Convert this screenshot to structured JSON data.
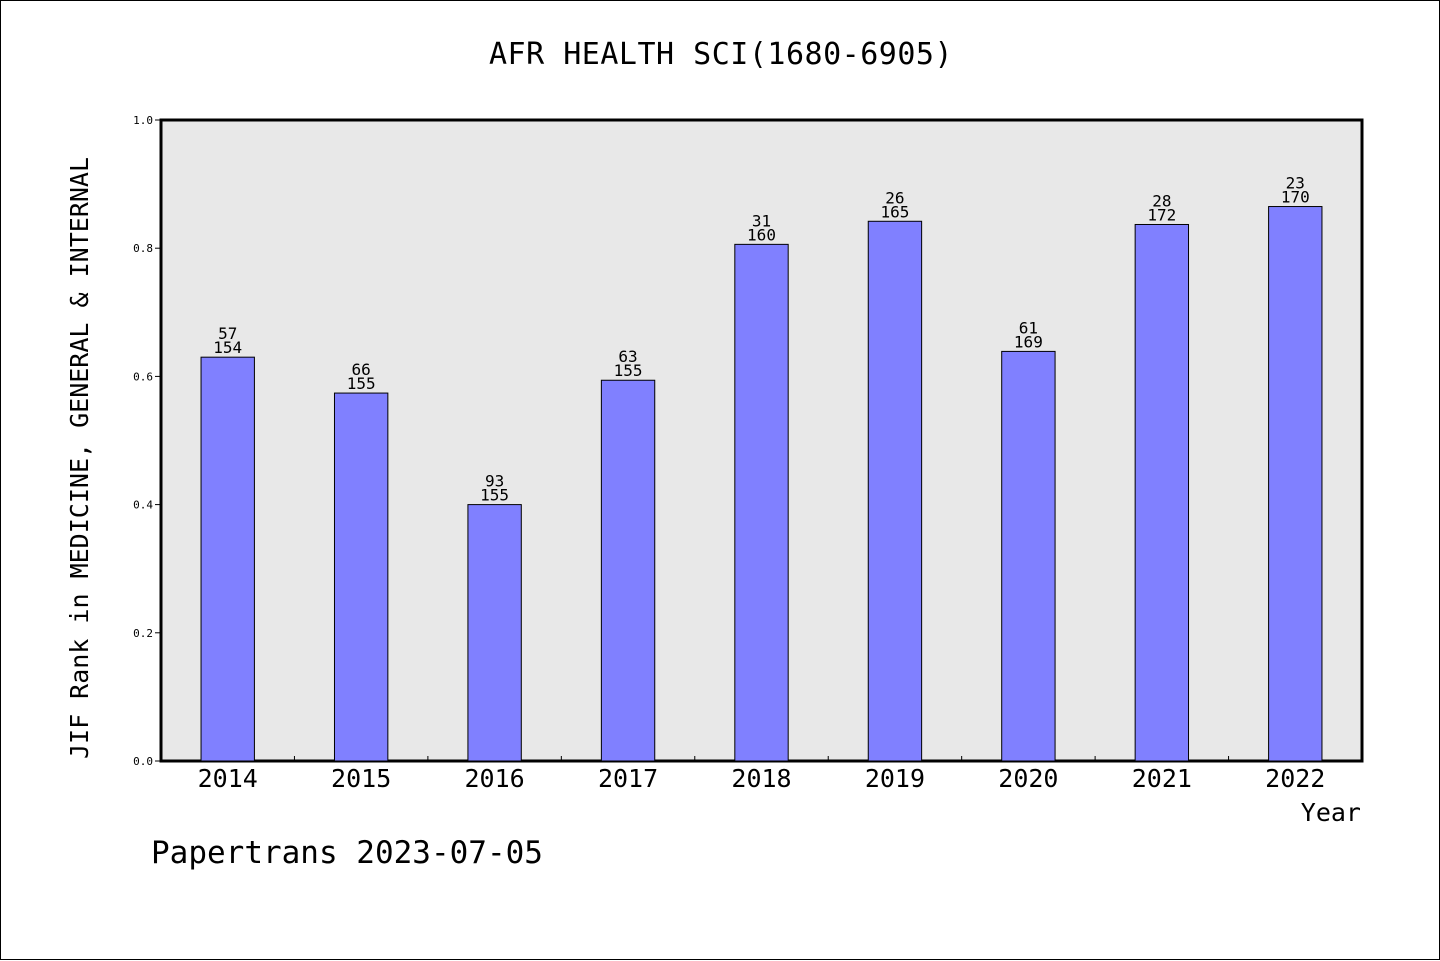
{
  "header": {
    "title": "AFR HEALTH SCI(1680-6905)"
  },
  "footer": {
    "note": "Papertrans 2023-07-05"
  },
  "chart_data": {
    "type": "bar",
    "title": "AFR HEALTH SCI(1680-6905)",
    "xlabel": "Year",
    "ylabel": "JIF Rank in MEDICINE, GENERAL & INTERNAL",
    "categories": [
      "2014",
      "2015",
      "2016",
      "2017",
      "2018",
      "2019",
      "2020",
      "2021",
      "2022"
    ],
    "values": [
      0.63,
      0.574,
      0.4,
      0.594,
      0.806,
      0.842,
      0.639,
      0.837,
      0.865
    ],
    "rank_labels": [
      "57",
      "66",
      "93",
      "63",
      "31",
      "26",
      "61",
      "28",
      "23"
    ],
    "total_labels": [
      "154",
      "155",
      "155",
      "155",
      "160",
      "165",
      "169",
      "172",
      "170"
    ],
    "ylim": [
      0,
      1.0
    ],
    "yticks": [
      "0.0",
      "0.2",
      "0.4",
      "0.6",
      "0.8",
      "1.0"
    ],
    "grid": false,
    "legend": "none",
    "colors": {
      "bar": "#8080ff",
      "plot_background": "#e8e8e8",
      "axis": "#000000"
    }
  }
}
